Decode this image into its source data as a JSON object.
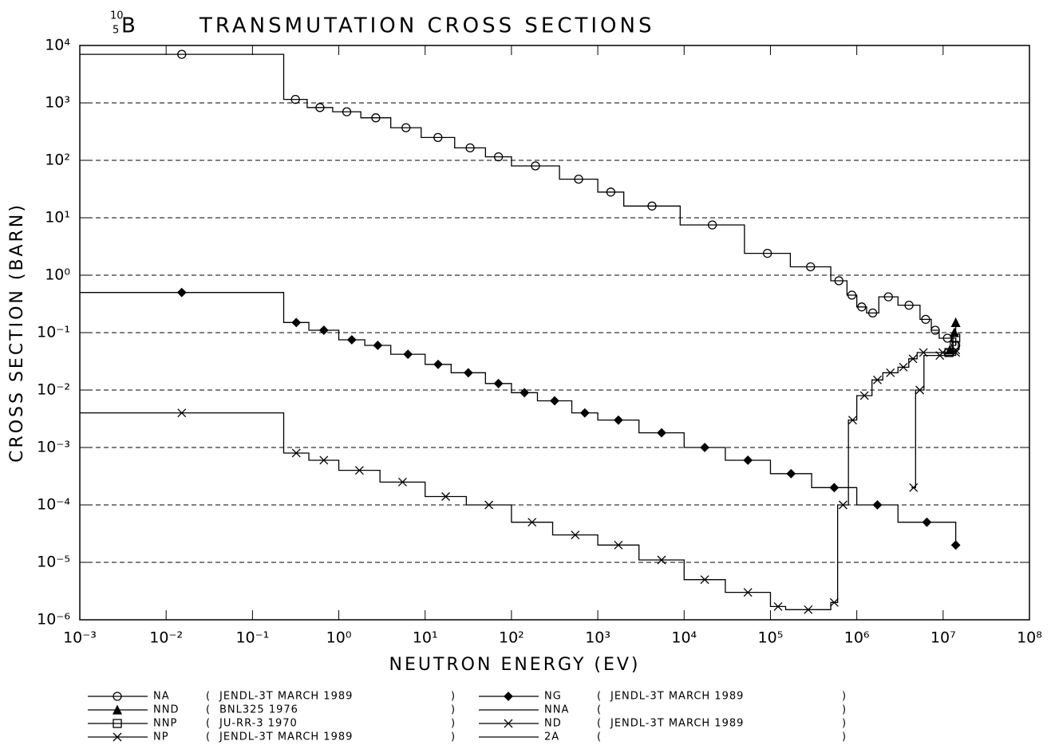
{
  "chart_data": {
    "type": "step",
    "title": "TRANSMUTATION CROSS SECTIONS",
    "nuclide": {
      "mass": "10",
      "charge": "5",
      "symbol": "B"
    },
    "x_label": "NEUTRON ENERGY (EV)",
    "y_label": "CROSS SECTION (BARN)",
    "log_x": true,
    "log_y": true,
    "grid": true,
    "grid_style": "dashed",
    "xlim": [
      0.001,
      100000000
    ],
    "ylim": [
      1e-06,
      10000
    ],
    "xticks": [
      {
        "value": 0.001,
        "label": "10⁻³"
      },
      {
        "value": 0.01,
        "label": "10⁻²"
      },
      {
        "value": 0.1,
        "label": "10⁻¹"
      },
      {
        "value": 1,
        "label": "10⁰"
      },
      {
        "value": 10,
        "label": "10¹"
      },
      {
        "value": 100,
        "label": "10²"
      },
      {
        "value": 1000,
        "label": "10³"
      },
      {
        "value": 10000,
        "label": "10⁴"
      },
      {
        "value": 100000,
        "label": "10⁵"
      },
      {
        "value": 1000000,
        "label": "10⁶"
      },
      {
        "value": 10000000,
        "label": "10⁷"
      },
      {
        "value": 100000000,
        "label": "10⁸"
      }
    ],
    "yticks": [
      {
        "value": 1e-06,
        "label": "10⁻⁶"
      },
      {
        "value": 1e-05,
        "label": "10⁻⁵"
      },
      {
        "value": 0.0001,
        "label": "10⁻⁴"
      },
      {
        "value": 0.001,
        "label": "10⁻³"
      },
      {
        "value": 0.01,
        "label": "10⁻²"
      },
      {
        "value": 0.1,
        "label": "10⁻¹"
      },
      {
        "value": 1,
        "label": "10⁰"
      },
      {
        "value": 10,
        "label": "10¹"
      },
      {
        "value": 100,
        "label": "10²"
      },
      {
        "value": 1000,
        "label": "10³"
      },
      {
        "value": 10000,
        "label": "10⁴"
      }
    ],
    "series": [
      {
        "name": "NA",
        "note": "JENDL-3T  MARCH  1989",
        "marker": "circle",
        "color": "#000000",
        "x": [
          0.001,
          0.23,
          0.43,
          0.85,
          1.8,
          4,
          9,
          22,
          50,
          100,
          360,
          1000,
          2000,
          9000,
          50000,
          170000,
          500000,
          770000,
          1000000,
          1300000,
          1800000,
          3000000,
          5400000,
          7300000,
          9000000,
          14000000
        ],
        "values": [
          7000,
          1150,
          830,
          700,
          550,
          370,
          250,
          165,
          115,
          80,
          47,
          28,
          16,
          7.5,
          2.4,
          1.4,
          0.8,
          0.45,
          0.28,
          0.22,
          0.42,
          0.3,
          0.17,
          0.11,
          0.08,
          0.06
        ]
      },
      {
        "name": "NND",
        "note": "BNL325 1976",
        "marker": "triangle",
        "color": "#000000",
        "x": [
          11000000,
          13000000,
          14000000
        ],
        "values": [
          0.05,
          0.1,
          0.15
        ]
      },
      {
        "name": "NNP",
        "note": "JU-RR-3 1970",
        "marker": "square",
        "color": "#000000",
        "x": [
          10500000,
          13000000,
          14000000
        ],
        "values": [
          0.045,
          0.06,
          0.08
        ]
      },
      {
        "name": "NP",
        "note": "JENDL-3T  MARCH  1989",
        "marker": "cross",
        "color": "#000000",
        "x": [
          0.001,
          0.23,
          0.45,
          1,
          3,
          10,
          30,
          100,
          300,
          1000,
          3000,
          10000,
          30000,
          100000,
          150000,
          500000,
          600000,
          800000,
          1000000,
          1500000,
          2000000,
          3000000,
          4000000,
          5000000,
          7000000,
          14000000
        ],
        "values": [
          0.004,
          0.0008,
          0.0006,
          0.0004,
          0.00025,
          0.00014,
          0.0001,
          5e-05,
          3e-05,
          2e-05,
          1.1e-05,
          5e-06,
          3e-06,
          1.7e-06,
          1.5e-06,
          2e-06,
          0.0001,
          0.003,
          0.008,
          0.015,
          0.02,
          0.025,
          0.035,
          0.045,
          0.045,
          0.05
        ]
      },
      {
        "name": "NG",
        "note": "JENDL-3T  MARCH  1989",
        "marker": "diamond",
        "color": "#000000",
        "x": [
          0.001,
          0.23,
          0.45,
          1,
          2,
          4,
          10,
          20,
          50,
          100,
          200,
          500,
          1000,
          3000,
          10000,
          30000,
          100000,
          300000,
          1000000,
          3000000,
          14000000
        ],
        "values": [
          0.5,
          0.15,
          0.11,
          0.075,
          0.06,
          0.042,
          0.028,
          0.02,
          0.013,
          0.009,
          0.0065,
          0.004,
          0.003,
          0.0018,
          0.001,
          0.0006,
          0.00035,
          0.0002,
          0.0001,
          5e-05,
          2e-05
        ]
      },
      {
        "name": "NNA",
        "note": "",
        "marker": "none",
        "color": "#000000",
        "x": [],
        "values": []
      },
      {
        "name": "ND",
        "note": "JENDL-3T  MARCH  1989",
        "marker": "cross",
        "color": "#000000",
        "x": [
          4300000,
          4800000,
          6000000,
          14000000
        ],
        "values": [
          0.0002,
          0.01,
          0.04,
          0.045
        ]
      },
      {
        "name": "2A",
        "note": "",
        "marker": "none",
        "color": "#000000",
        "x": [],
        "values": []
      }
    ]
  }
}
